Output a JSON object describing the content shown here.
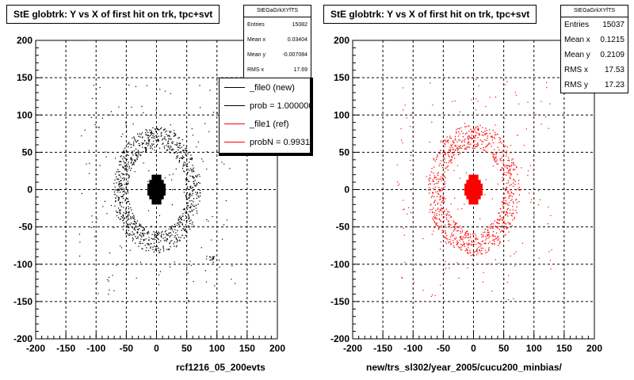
{
  "chart_data": [
    {
      "type": "scatter",
      "title": "StE globtrk: Y vs X of first hit on trk, tpc+svt",
      "xlabel": "rcf1216_05_200evts",
      "ylabel": "",
      "xlim": [
        -200,
        200
      ],
      "ylim": [
        -200,
        200
      ],
      "x_ticks": [
        "-200",
        "-150",
        "-100",
        "-50",
        "0",
        "50",
        "100",
        "150",
        "200"
      ],
      "y_ticks": [
        "200",
        "150",
        "100",
        "50",
        "0",
        "-50",
        "-100",
        "-150",
        "-200"
      ],
      "grid": true,
      "marker_color": "#000000",
      "stats_box": {
        "title": "StEGaGrkXYfTS",
        "entries": [
          {
            "label": "Entries",
            "value": "15082"
          },
          {
            "label": "Mean x",
            "value": "0.03404"
          },
          {
            "label": "Mean y",
            "value": "-0.007084"
          },
          {
            "label": "RMS x",
            "value": "17.69"
          }
        ]
      },
      "legend": {
        "placement": "top-right",
        "entries": [
          {
            "label": "_file0 (new)",
            "color": "#000000"
          },
          {
            "label": "prob = 1.000000",
            "color": "#000000"
          },
          {
            "label": "_file1 (ref)",
            "color": "#ff0000"
          },
          {
            "label": "probN = 0.993175",
            "color": "#ff0000"
          }
        ]
      },
      "distribution": {
        "core": {
          "x_range": [
            -15,
            15
          ],
          "y_range": [
            -20,
            20
          ],
          "arm_half_width": 8,
          "arm_half_height": 8
        },
        "ring": {
          "radius_x": 60,
          "radius_y": 70,
          "spread": 12
        },
        "extra_clusters": [
          {
            "x": 92,
            "y": -93
          }
        ]
      }
    },
    {
      "type": "scatter",
      "title": "StE globtrk: Y vs X of first hit on trk, tpc+svt",
      "xlabel": "new/trs_sl302/year_2005/cucu200_minbias/",
      "ylabel": "",
      "xlim": [
        -200,
        200
      ],
      "ylim": [
        -200,
        200
      ],
      "x_ticks": [
        "-200",
        "-150",
        "-100",
        "-50",
        "0",
        "50",
        "100",
        "150",
        "200"
      ],
      "y_ticks": [
        "200",
        "150",
        "100",
        "50",
        "0",
        "-50",
        "-100",
        "-150",
        "-200"
      ],
      "grid": true,
      "marker_color": "#ff0000",
      "stats_box": {
        "title": "StEGaGrkXYfTS",
        "entries": [
          {
            "label": "Entries",
            "value": "15037"
          },
          {
            "label": "Mean x",
            "value": "0.1215"
          },
          {
            "label": "Mean y",
            "value": "0.2109"
          },
          {
            "label": "RMS x",
            "value": "17.53"
          },
          {
            "label": "RMS y",
            "value": "17.23"
          }
        ]
      },
      "distribution": {
        "core": {
          "x_range": [
            -15,
            15
          ],
          "y_range": [
            -20,
            20
          ],
          "arm_half_width": 8,
          "arm_half_height": 8
        },
        "ring": {
          "radius_x": 62,
          "radius_y": 72,
          "spread": 14
        },
        "extra_clusters": []
      }
    }
  ]
}
